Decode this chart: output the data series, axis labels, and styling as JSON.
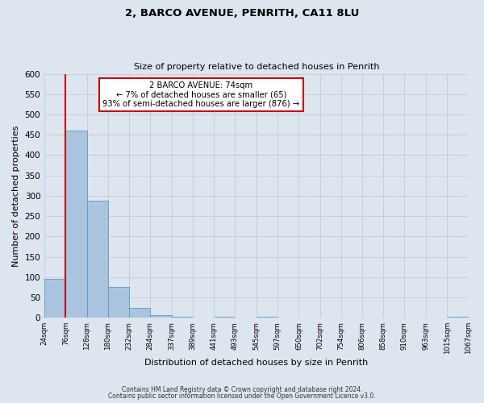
{
  "title": "2, BARCO AVENUE, PENRITH, CA11 8LU",
  "subtitle": "Size of property relative to detached houses in Penrith",
  "xlabel": "Distribution of detached houses by size in Penrith",
  "ylabel": "Number of detached properties",
  "bar_edges": [
    24,
    76,
    128,
    180,
    232,
    284,
    337,
    389,
    441,
    493,
    545,
    597,
    650,
    702,
    754,
    806,
    858,
    910,
    963,
    1015,
    1067
  ],
  "bar_values": [
    95,
    460,
    288,
    75,
    25,
    7,
    2,
    0,
    2,
    0,
    2,
    0,
    0,
    0,
    0,
    0,
    0,
    0,
    0,
    2
  ],
  "bar_color": "#aac4e0",
  "bar_edge_color": "#5a9abf",
  "vline_x": 76,
  "vline_color": "#cc0000",
  "annotation_text": "2 BARCO AVENUE: 74sqm\n← 7% of detached houses are smaller (65)\n93% of semi-detached houses are larger (876) →",
  "annotation_box_color": "#ffffff",
  "annotation_box_edge": "#cc0000",
  "ylim": [
    0,
    600
  ],
  "yticks": [
    0,
    50,
    100,
    150,
    200,
    250,
    300,
    350,
    400,
    450,
    500,
    550,
    600
  ],
  "bg_color": "#dde5ef",
  "footer_line1": "Contains HM Land Registry data © Crown copyright and database right 2024.",
  "footer_line2": "Contains public sector information licensed under the Open Government Licence v3.0."
}
